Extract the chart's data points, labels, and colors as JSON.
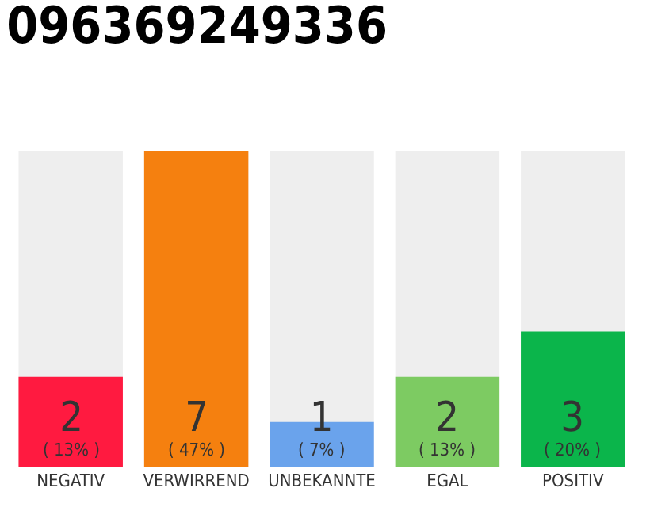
{
  "chart_data": {
    "type": "bar",
    "title": "096369249336",
    "categories": [
      "NEGATIV",
      "VERWIRREND",
      "UNBEKANNTE",
      "EGAL",
      "POSITIV"
    ],
    "values": [
      2,
      7,
      1,
      2,
      3
    ],
    "colors": [
      "#ff1a40",
      "#f5800f",
      "#6aa3ec",
      "#7dcb62",
      "#0bb54b"
    ],
    "value_labels": [
      "2\n( 13% )",
      "7\n( 47% )",
      "1\n( 7% )",
      "2\n( 13% )",
      "3\n( 20% )"
    ]
  }
}
